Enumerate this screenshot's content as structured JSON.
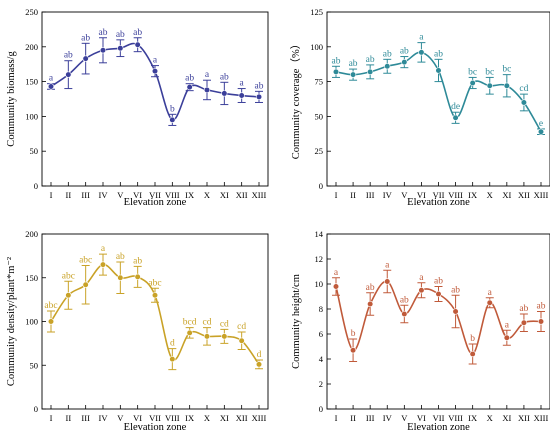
{
  "chart_data": [
    {
      "type": "line",
      "color": "#3b3f9a",
      "xlabel": "Elevation zone",
      "ylabel": "Community biomass/g",
      "ylim": [
        0,
        250
      ],
      "yticks": [
        0,
        50,
        100,
        150,
        200,
        250
      ],
      "categories": [
        "I",
        "II",
        "III",
        "IV",
        "V",
        "VI",
        "VII",
        "VIII",
        "IX",
        "X",
        "XI",
        "XII",
        "XIII"
      ],
      "values": [
        143,
        160,
        183,
        195,
        198,
        203,
        165,
        95,
        142,
        138,
        133,
        130,
        128
      ],
      "errors": [
        4,
        20,
        22,
        18,
        12,
        10,
        8,
        8,
        5,
        14,
        16,
        10,
        8
      ],
      "letters": [
        "a",
        "ab",
        "ab",
        "ab",
        "ab",
        "ab",
        "a",
        "b",
        "ab",
        "a",
        "ab",
        "a",
        "ab"
      ]
    },
    {
      "type": "line",
      "color": "#2e8a98",
      "xlabel": "Elevation zone",
      "ylabel": "Community coverage（%）",
      "ylim": [
        0,
        125
      ],
      "yticks": [
        0,
        25,
        50,
        75,
        100,
        125
      ],
      "categories": [
        "I",
        "II",
        "III",
        "IV",
        "V",
        "VI",
        "VII",
        "VIII",
        "IX",
        "X",
        "XI",
        "XII",
        "XIII"
      ],
      "values": [
        82,
        80,
        82,
        86,
        89,
        96,
        83,
        49,
        74,
        72,
        72,
        60,
        39
      ],
      "errors": [
        4,
        4,
        5,
        5,
        4,
        7,
        8,
        4,
        4,
        6,
        8,
        6,
        2
      ],
      "letters": [
        "ab",
        "ab",
        "ab",
        "ab",
        "ab",
        "a",
        "ab",
        "de",
        "bc",
        "bc",
        "bc",
        "cd",
        "e"
      ]
    },
    {
      "type": "line",
      "color": "#c9a227",
      "xlabel": "Elevation zone",
      "ylabel": "Community density/plant*m⁻²",
      "ylim": [
        0,
        200
      ],
      "yticks": [
        0,
        50,
        100,
        150,
        200
      ],
      "categories": [
        "I",
        "II",
        "III",
        "IV",
        "V",
        "VI",
        "VII",
        "VIII",
        "IX",
        "X",
        "XI",
        "XII",
        "XIII"
      ],
      "values": [
        100,
        130,
        142,
        165,
        150,
        151,
        130,
        57,
        87,
        83,
        83,
        78,
        51
      ],
      "errors": [
        12,
        16,
        22,
        12,
        18,
        12,
        8,
        12,
        6,
        10,
        8,
        10,
        5
      ],
      "letters": [
        "abc",
        "abc",
        "abc",
        "a",
        "ab",
        "ab",
        "abc",
        "d",
        "bcd",
        "cd",
        "cd",
        "cd",
        "d"
      ]
    },
    {
      "type": "line",
      "color": "#c05a3a",
      "xlabel": "Elevation zone",
      "ylabel": "Community height/cm",
      "ylim": [
        0,
        14
      ],
      "yticks": [
        0,
        2,
        4,
        6,
        8,
        10,
        12,
        14
      ],
      "categories": [
        "I",
        "II",
        "III",
        "IV",
        "V",
        "VI",
        "VII",
        "VIII",
        "IX",
        "X",
        "XI",
        "XII",
        "XIII"
      ],
      "values": [
        9.8,
        4.7,
        8.4,
        10.2,
        7.6,
        9.5,
        9.2,
        7.8,
        4.4,
        8.5,
        5.7,
        6.9,
        7.0
      ],
      "errors": [
        0.7,
        0.9,
        0.9,
        0.9,
        0.7,
        0.6,
        0.6,
        1.3,
        0.8,
        0.4,
        0.6,
        0.7,
        0.8
      ],
      "letters": [
        "a",
        "b",
        "ab",
        "a",
        "ab",
        "a",
        "ab",
        "ab",
        "b",
        "a",
        "a",
        "ab",
        "ab"
      ]
    }
  ]
}
